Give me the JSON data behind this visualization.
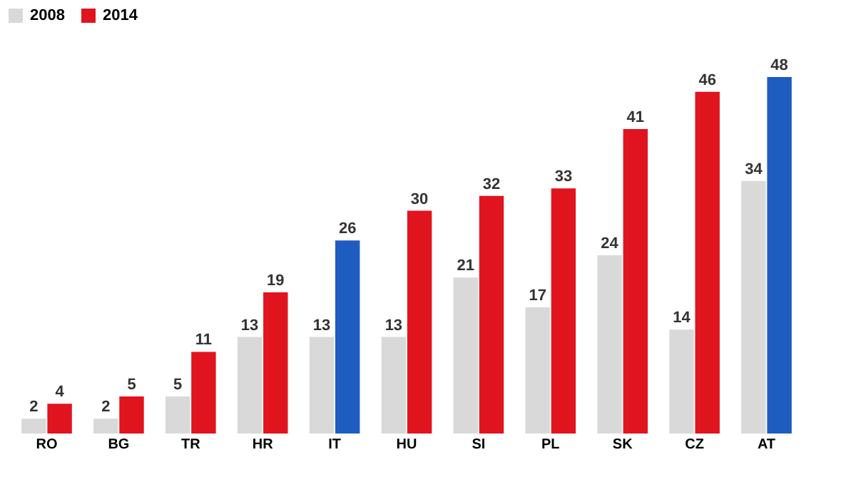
{
  "chart_data": {
    "type": "bar",
    "categories": [
      "RO",
      "BG",
      "TR",
      "HR",
      "IT",
      "HU",
      "SI",
      "PL",
      "SK",
      "CZ",
      "AT"
    ],
    "series": [
      {
        "name": "2008",
        "color": "#d9d9d9",
        "values": [
          2,
          2,
          5,
          13,
          13,
          13,
          21,
          17,
          24,
          14,
          34
        ]
      },
      {
        "name": "2014",
        "color": "#e0141e",
        "colors": [
          "#e0141e",
          "#e0141e",
          "#e0141e",
          "#e0141e",
          "#1f5cc0",
          "#e0141e",
          "#e0141e",
          "#e0141e",
          "#e0141e",
          "#e0141e",
          "#1f5cc0"
        ],
        "values": [
          4,
          5,
          11,
          19,
          26,
          30,
          32,
          33,
          41,
          46,
          48
        ]
      }
    ],
    "data_labels": true,
    "legend": "top",
    "grid": false,
    "tick_labels": "x"
  }
}
